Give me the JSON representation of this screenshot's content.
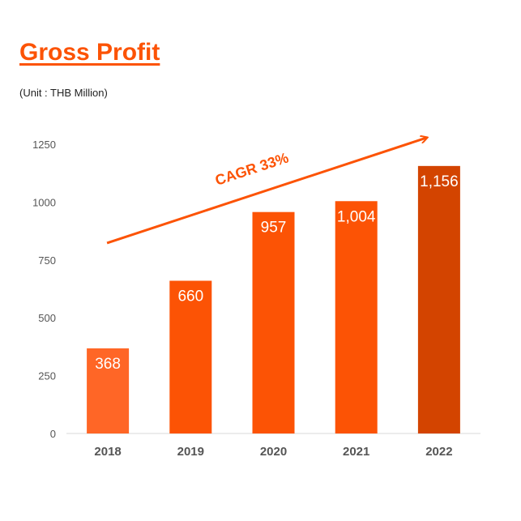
{
  "title": "Gross Profit",
  "unit_label": "(Unit : THB Million)",
  "chart_data": {
    "type": "bar",
    "categories": [
      "2018",
      "2019",
      "2020",
      "2021",
      "2022"
    ],
    "values": [
      368,
      660,
      957,
      1004,
      1156
    ],
    "data_labels": [
      "368",
      "660",
      "957",
      "1,004",
      "1,156"
    ],
    "yticks": [
      0,
      250,
      500,
      750,
      1000,
      1250
    ],
    "ylim": [
      0,
      1250
    ],
    "grid": false,
    "colors": [
      "#ff6626",
      "#fc5305",
      "#fc5305",
      "#fc5305",
      "#d34400"
    ],
    "annotation": {
      "text": "CAGR 33%",
      "color": "#fc5305"
    }
  }
}
